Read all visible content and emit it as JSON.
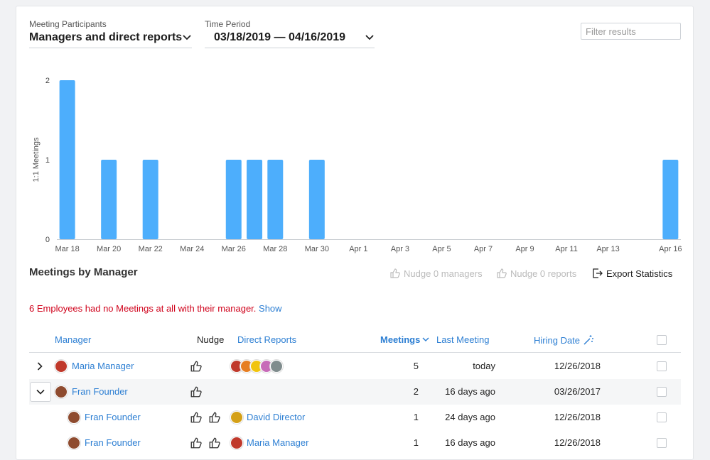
{
  "filters": {
    "participants": {
      "label": "Meeting Participants",
      "value": "Managers and direct reports"
    },
    "period": {
      "label": "Time Period",
      "value": "03/18/2019 — 04/16/2019"
    },
    "search_placeholder": "Filter results"
  },
  "chart_data": {
    "type": "bar",
    "ylabel": "1:1 Meetings",
    "ylim": [
      0,
      2
    ],
    "yticks": [
      0,
      1,
      2
    ],
    "categories": [
      "Mar 18",
      "Mar 19",
      "Mar 20",
      "Mar 21",
      "Mar 22",
      "Mar 23",
      "Mar 24",
      "Mar 25",
      "Mar 26",
      "Mar 27",
      "Mar 28",
      "Mar 29",
      "Mar 30",
      "Mar 31",
      "Apr 1",
      "Apr 2",
      "Apr 3",
      "Apr 4",
      "Apr 5",
      "Apr 6",
      "Apr 7",
      "Apr 8",
      "Apr 9",
      "Apr 10",
      "Apr 11",
      "Apr 12",
      "Apr 13",
      "Apr 14",
      "Apr 15",
      "Apr 16"
    ],
    "values": [
      2,
      0,
      1,
      0,
      1,
      0,
      0,
      0,
      1,
      1,
      1,
      0,
      1,
      0,
      0,
      0,
      0,
      0,
      0,
      0,
      0,
      0,
      0,
      0,
      0,
      0,
      0,
      0,
      0,
      1
    ],
    "tick_labels": [
      "Mar 18",
      "Mar 20",
      "Mar 22",
      "Mar 24",
      "Mar 26",
      "Mar 28",
      "Mar 30",
      "Apr 1",
      "Apr 3",
      "Apr 5",
      "Apr 7",
      "Apr 9",
      "Apr 11",
      "Apr 13",
      "Apr 16"
    ],
    "bar_color": "#4daefc"
  },
  "section": {
    "title": "Meetings by Manager",
    "nudge_managers": "Nudge 0 managers",
    "nudge_reports": "Nudge 0 reports",
    "export": "Export Statistics"
  },
  "warning": {
    "text": "6 Employees had no Meetings at all with their manager.",
    "link": "Show"
  },
  "table": {
    "headers": {
      "manager": "Manager",
      "nudge": "Nudge",
      "reports": "Direct Reports",
      "meetings": "Meetings",
      "last": "Last Meeting",
      "hiring": "Hiring Date"
    },
    "rows": [
      {
        "manager": "Maria Manager",
        "report": "",
        "meetings": "5",
        "last": "today",
        "hiring": "12/26/2018"
      },
      {
        "manager": "Fran Founder",
        "report": "",
        "meetings": "2",
        "last": "16 days ago",
        "hiring": "03/26/2017"
      },
      {
        "manager": "Fran Founder",
        "report": "David Director",
        "meetings": "1",
        "last": "24 days ago",
        "hiring": "12/26/2018"
      },
      {
        "manager": "Fran Founder",
        "report": "Maria Manager",
        "meetings": "1",
        "last": "16 days ago",
        "hiring": "12/26/2018"
      }
    ]
  },
  "colors": {
    "accent": "#2d7fd3",
    "warning": "#d0021b",
    "bar": "#4daefc"
  }
}
